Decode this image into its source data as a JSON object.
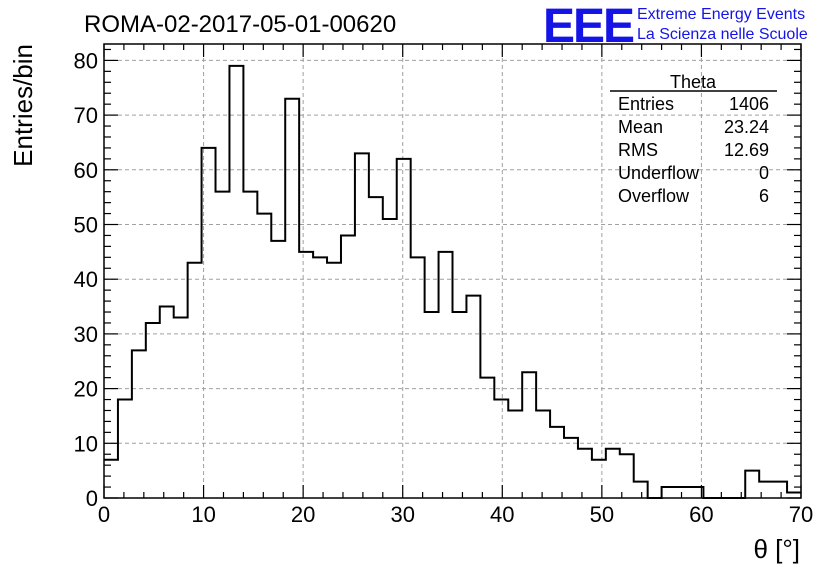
{
  "title": "ROMA-02-2017-05-01-00620",
  "logo": {
    "mark": "EEE",
    "line1": "Extreme Energy Events",
    "line2": "La Scienza nelle Scuole",
    "color": "#1414e6"
  },
  "stats": {
    "name": "Theta",
    "rows": [
      {
        "label": "Entries",
        "value": "1406"
      },
      {
        "label": "Mean",
        "value": "23.24"
      },
      {
        "label": "RMS",
        "value": "12.69"
      },
      {
        "label": "Underflow",
        "value": "0"
      },
      {
        "label": "Overflow",
        "value": "6"
      }
    ]
  },
  "chart_data": {
    "type": "histogram",
    "title": "ROMA-02-2017-05-01-00620",
    "xlabel": "θ [°]",
    "ylabel": "Entries/bin",
    "xlim": [
      0,
      70
    ],
    "ylim": [
      0,
      83
    ],
    "bin_width": 1.4,
    "grid": true,
    "legend": "top-right",
    "xticks": [
      0,
      10,
      20,
      30,
      40,
      50,
      60,
      70
    ],
    "yticks": [
      0,
      10,
      20,
      30,
      40,
      50,
      60,
      70,
      80
    ],
    "bin_edges_start": 0,
    "counts": [
      7,
      18,
      27,
      32,
      35,
      33,
      43,
      64,
      56,
      79,
      56,
      52,
      47,
      73,
      45,
      44,
      43,
      48,
      63,
      55,
      51,
      62,
      44,
      34,
      45,
      34,
      37,
      22,
      18,
      16,
      23,
      16,
      13,
      11,
      9,
      7,
      9,
      8,
      3,
      0,
      2,
      2,
      2,
      0,
      0,
      0,
      5,
      3,
      3,
      1
    ]
  }
}
